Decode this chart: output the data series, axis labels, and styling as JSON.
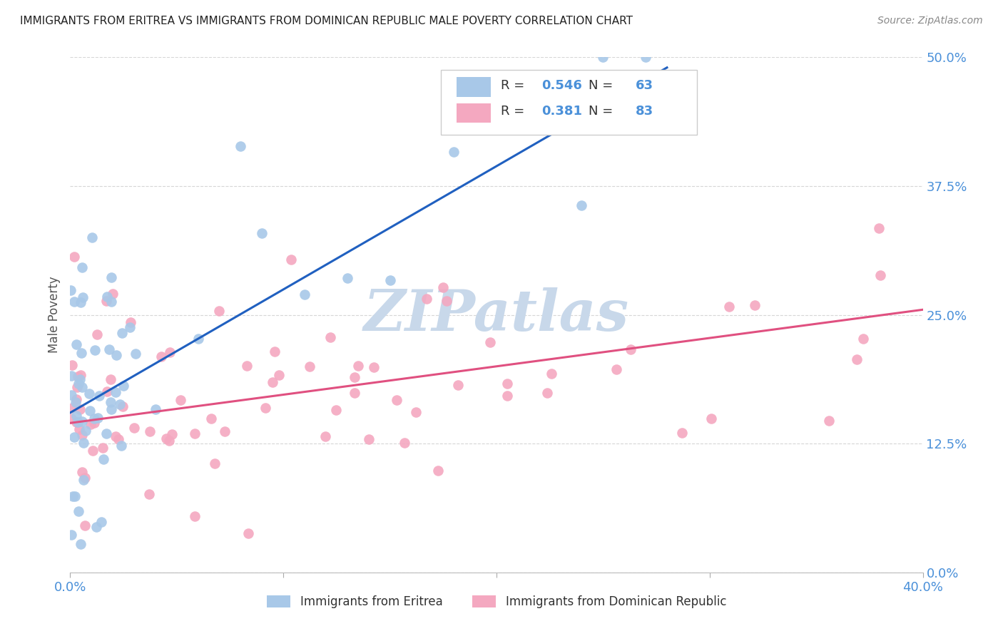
{
  "title": "IMMIGRANTS FROM ERITREA VS IMMIGRANTS FROM DOMINICAN REPUBLIC MALE POVERTY CORRELATION CHART",
  "source": "Source: ZipAtlas.com",
  "ylabel": "Male Poverty",
  "ytick_labels": [
    "0.0%",
    "12.5%",
    "25.0%",
    "37.5%",
    "50.0%"
  ],
  "ytick_values": [
    0.0,
    0.125,
    0.25,
    0.375,
    0.5
  ],
  "xlim": [
    0.0,
    0.4
  ],
  "ylim": [
    0.0,
    0.5
  ],
  "legend_label1": "Immigrants from Eritrea",
  "legend_label2": "Immigrants from Dominican Republic",
  "R1": 0.546,
  "N1": 63,
  "R2": 0.381,
  "N2": 83,
  "color_eritrea": "#a8c8e8",
  "color_dom_rep": "#f4a8c0",
  "line_color_eritrea": "#2060c0",
  "line_color_dom_rep": "#e05080",
  "watermark_color": "#c8d8ea",
  "background_color": "#ffffff",
  "grid_color": "#cccccc",
  "title_color": "#222222",
  "axis_label_color": "#4a90d9"
}
